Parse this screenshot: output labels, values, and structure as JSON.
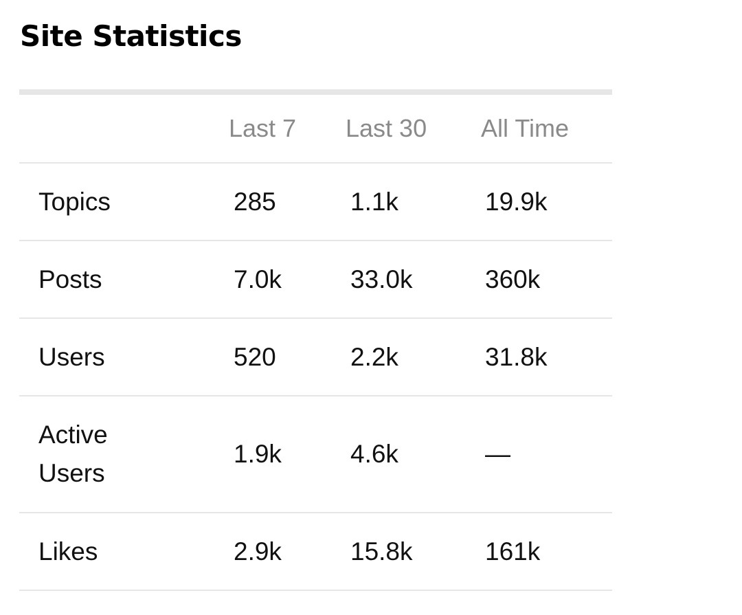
{
  "page": {
    "title": "Site Statistics"
  },
  "table": {
    "columns": [
      "",
      "Last 7",
      "Last 30",
      "All Time"
    ],
    "rows": [
      {
        "label": "Topics",
        "last_7": "285",
        "last_30": "1.1k",
        "all_time": "19.9k"
      },
      {
        "label": "Posts",
        "last_7": "7.0k",
        "last_30": "33.0k",
        "all_time": "360k"
      },
      {
        "label": "Users",
        "last_7": "520",
        "last_30": "2.2k",
        "all_time": "31.8k"
      },
      {
        "label": "Active Users",
        "last_7": "1.9k",
        "last_30": "4.6k",
        "all_time": "—"
      },
      {
        "label": "Likes",
        "last_7": "2.9k",
        "last_30": "15.8k",
        "all_time": "161k"
      }
    ]
  },
  "colors": {
    "header_text": "#8a8a8a",
    "divider": "#e6e6e6",
    "body_text": "#111111"
  }
}
